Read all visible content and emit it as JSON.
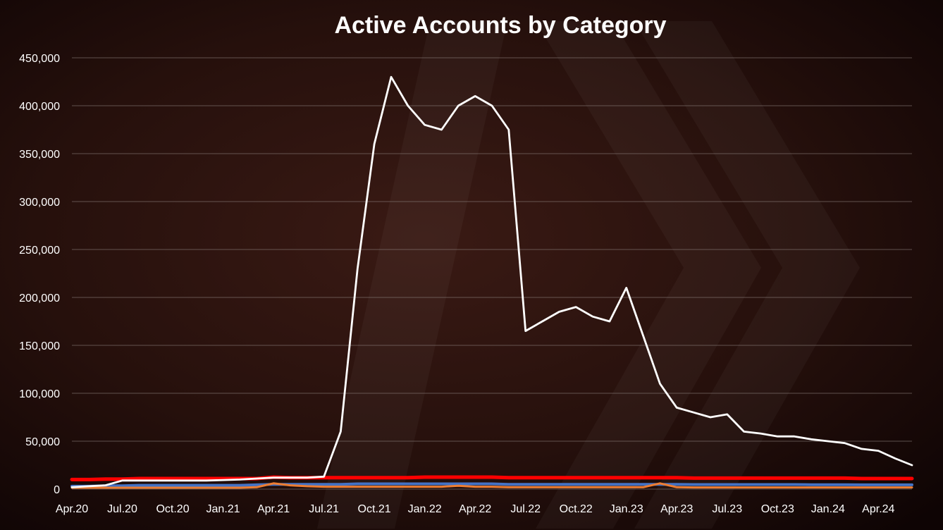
{
  "chart_data": {
    "type": "line",
    "title": "Active Accounts by Category",
    "xlabel": "",
    "ylabel": "",
    "ylim": [
      0,
      450000
    ],
    "grid": true,
    "y_ticks": [
      0,
      50000,
      100000,
      150000,
      200000,
      250000,
      300000,
      350000,
      400000,
      450000
    ],
    "y_tick_labels": [
      "0",
      "50,000",
      "100,000",
      "150,000",
      "200,000",
      "250,000",
      "300,000",
      "350,000",
      "400,000",
      "450,000"
    ],
    "x_tick_labels": [
      "Apr.20",
      "Jul.20",
      "Oct.20",
      "Jan.21",
      "Apr.21",
      "Jul.21",
      "Oct.21",
      "Jan.22",
      "Apr.22",
      "Jul.22",
      "Oct.22",
      "Jan.23",
      "Apr.23",
      "Jul.23",
      "Oct.23",
      "Jan.24",
      "Apr.24"
    ],
    "x": [
      "Apr.20",
      "May.20",
      "Jun.20",
      "Jul.20",
      "Aug.20",
      "Sep.20",
      "Oct.20",
      "Nov.20",
      "Dec.20",
      "Jan.21",
      "Feb.21",
      "Mar.21",
      "Apr.21",
      "May.21",
      "Jun.21",
      "Jul.21",
      "Aug.21",
      "Sep.21",
      "Oct.21",
      "Nov.21",
      "Dec.21",
      "Jan.22",
      "Feb.22",
      "Mar.22",
      "Apr.22",
      "May.22",
      "Jun.22",
      "Jul.22",
      "Aug.22",
      "Sep.22",
      "Oct.22",
      "Nov.22",
      "Dec.22",
      "Jan.23",
      "Feb.23",
      "Mar.23",
      "Apr.23",
      "May.23",
      "Jun.23",
      "Jul.23",
      "Aug.23",
      "Sep.23",
      "Oct.23",
      "Nov.23",
      "Dec.23",
      "Jan.24",
      "Feb.24",
      "Mar.24",
      "Apr.24",
      "May.24",
      "Jun.24"
    ],
    "series": [
      {
        "color": "#ffffff",
        "values": [
          2000,
          3000,
          4000,
          9000,
          9000,
          9000,
          9000,
          9000,
          9000,
          9500,
          10000,
          11000,
          12000,
          12000,
          12000,
          13000,
          60000,
          230000,
          360000,
          430000,
          400000,
          380000,
          375000,
          400000,
          410000,
          400000,
          375000,
          165000,
          175000,
          185000,
          190000,
          180000,
          175000,
          210000,
          160000,
          110000,
          85000,
          80000,
          75000,
          78000,
          60000,
          58000,
          55000,
          55000,
          52000,
          50000,
          48000,
          42000,
          40000,
          32000,
          25000
        ]
      },
      {
        "color": "#ff0000",
        "values": [
          10000,
          10000,
          10500,
          10500,
          11000,
          11000,
          11000,
          11000,
          11000,
          11000,
          11000,
          11000,
          12500,
          12000,
          12000,
          12000,
          12000,
          12000,
          12000,
          12000,
          12000,
          12500,
          12500,
          12500,
          12500,
          12500,
          12000,
          12000,
          12000,
          12000,
          12000,
          12000,
          12000,
          12000,
          12000,
          12000,
          12000,
          11500,
          11500,
          11500,
          11500,
          11500,
          11500,
          11500,
          11500,
          11500,
          11500,
          11000,
          11000,
          11000,
          11000
        ]
      },
      {
        "color": "#4472c4",
        "values": [
          3000,
          3000,
          3500,
          3500,
          4000,
          4000,
          4000,
          4000,
          4000,
          4000,
          4000,
          4500,
          5000,
          5000,
          5000,
          5000,
          5000,
          5500,
          5500,
          5500,
          5500,
          5500,
          5500,
          5500,
          5500,
          5500,
          5000,
          5000,
          5000,
          5000,
          5000,
          5000,
          5000,
          5000,
          5000,
          5000,
          5000,
          4800,
          4800,
          4800,
          4800,
          4800,
          4800,
          4800,
          4600,
          4600,
          4600,
          4500,
          4500,
          4500,
          4500
        ]
      },
      {
        "color": "#ed7d31",
        "values": [
          1500,
          1500,
          1500,
          1500,
          1500,
          1500,
          1500,
          1500,
          1500,
          1500,
          1500,
          2000,
          6000,
          4000,
          3000,
          2500,
          2500,
          2500,
          2500,
          2500,
          2500,
          2500,
          2500,
          3500,
          2500,
          2500,
          2000,
          2000,
          2000,
          2000,
          2000,
          2000,
          2000,
          2000,
          2000,
          6000,
          2000,
          1800,
          1800,
          1800,
          1800,
          1800,
          1800,
          1800,
          1800,
          1800,
          1800,
          1800,
          1800,
          1800,
          1800
        ]
      }
    ]
  }
}
